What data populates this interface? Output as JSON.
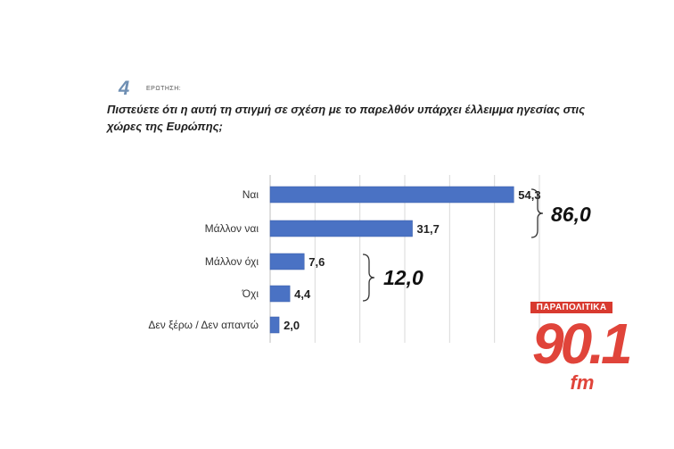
{
  "question": {
    "number": "4",
    "label": "ΕΡΩΤΗΣΗ:",
    "text": "Πιστεύετε ότι η αυτή τη στιγμή σε σχέση με το παρελθόν υπάρχει έλλειμμα ηγεσίας στις χώρες της Ευρώπης;"
  },
  "chart_data": {
    "type": "bar",
    "orientation": "horizontal",
    "categories": [
      "Ναι",
      "Μάλλον ναι",
      "Μάλλον όχι",
      "Όχι",
      "Δεν ξέρω / Δεν απαντώ"
    ],
    "values": [
      54.3,
      31.7,
      7.6,
      4.4,
      2.0
    ],
    "value_labels": [
      "54,3",
      "31,7",
      "7,6",
      "4,4",
      "2,0"
    ],
    "xlim": [
      0,
      60
    ],
    "grid": true,
    "color": "#4a72c4",
    "groups": [
      {
        "categories": [
          "Ναι",
          "Μάλλον ναι"
        ],
        "total": "86,0"
      },
      {
        "categories": [
          "Μάλλον όχι",
          "Όχι"
        ],
        "total": "12,0"
      }
    ]
  },
  "logo": {
    "header": "ΠΑΡΑΠΟΛΙΤΙΚΑ",
    "main": "90.1",
    "suffix": "fm"
  }
}
